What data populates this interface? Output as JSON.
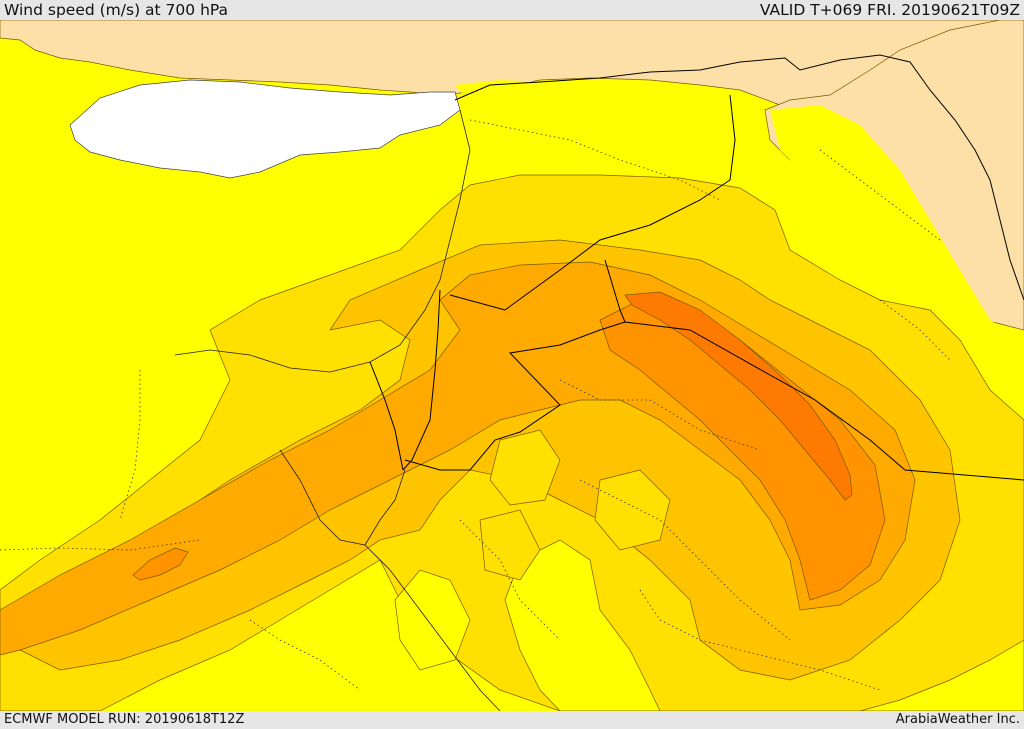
{
  "header": {
    "title": "Wind speed (m/s) at 700 hPa",
    "valid_time": "VALID T+069 FRI. 20190621T09Z"
  },
  "footer": {
    "model_run": "ECMWF MODEL RUN: 20190618T12Z",
    "credit": "ArabiaWeather Inc."
  },
  "map": {
    "field": "wind speed",
    "level_hPa": 700,
    "colors": {
      "land_outside_domain": "#fde0a8",
      "sea_uncovered": "#ffffff",
      "band_lowest": "#ffff00",
      "band_low": "#ffe000",
      "band_mid": "#ffc400",
      "band_high": "#ffaa00",
      "band_higher": "#ff9400",
      "band_max": "#ff7a00",
      "contour_line": "#7a5a00",
      "border_line": "#000000"
    }
  }
}
